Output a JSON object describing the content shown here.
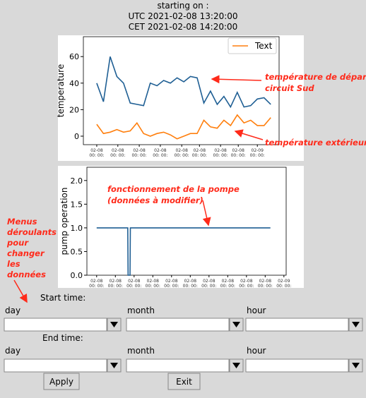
{
  "header": {
    "lines": [
      "starting on :",
      "UTC 2021-02-08 13:20:00",
      "CET 2021-02-08 14:20:00"
    ]
  },
  "chart_data": [
    {
      "type": "line",
      "ylabel": "temperature",
      "x": [
        0,
        2,
        4,
        6,
        8,
        10,
        12,
        14,
        16,
        18,
        20,
        22,
        24,
        26,
        28,
        30,
        32,
        34,
        36,
        38,
        40,
        42,
        44,
        46,
        48,
        50,
        52
      ],
      "series": [
        {
          "color": "#1f5f94",
          "values": [
            40,
            26,
            60,
            45,
            40,
            25,
            24,
            23,
            40,
            38,
            42,
            40,
            44,
            41,
            45,
            44,
            25,
            34,
            24,
            30,
            22,
            33,
            22,
            23,
            28,
            29,
            24
          ]
        },
        {
          "name": "Text",
          "color": "#ff7f0e",
          "values": [
            9,
            2,
            3,
            5,
            3,
            4,
            10,
            2,
            0,
            2,
            3,
            1,
            -2,
            0,
            2,
            2,
            12,
            7,
            6,
            12,
            8,
            16,
            10,
            12,
            8,
            8,
            14
          ]
        }
      ],
      "xlim": [
        -4,
        54.5
      ],
      "ylim": [
        -6.4,
        75
      ],
      "yticks": [
        0,
        20,
        40,
        60
      ],
      "xticks": [
        {
          "value": 0,
          "label": "02-08\n00: 00:"
        },
        {
          "value": 6.3,
          "label": "02-08\n00: 00:"
        },
        {
          "value": 12.7,
          "label": "02-08\n00: 00:"
        },
        {
          "value": 19,
          "label": "02-08\n00: 00:"
        },
        {
          "value": 25.4,
          "label": "02-08\n00: 00:"
        },
        {
          "value": 30.7,
          "label": "02-08\n00: 00:"
        },
        {
          "value": 37,
          "label": "02-08\n00: 00:"
        },
        {
          "value": 42.3,
          "label": "02-08\n00: 00:"
        },
        {
          "value": 48,
          "label": "02-09\n00: 00:"
        }
      ],
      "legend": "upper right"
    },
    {
      "type": "line",
      "ylabel": "pump operation",
      "x": [
        0,
        8.3,
        8.4,
        8.9,
        9.0,
        46.4
      ],
      "series": [
        {
          "color": "#1f5f94",
          "values": [
            1,
            1,
            0,
            0,
            1,
            1
          ]
        }
      ],
      "xlim": [
        -2.6,
        50.6
      ],
      "ylim": [
        0,
        2.28
      ],
      "yticks": [
        {
          "value": 0,
          "label": "0.0"
        },
        {
          "value": 0.5,
          "label": "0.5"
        },
        {
          "value": 1,
          "label": "1.0"
        },
        {
          "value": 1.5,
          "label": "1.5"
        },
        {
          "value": 2,
          "label": "2.0"
        }
      ],
      "xticks": [
        {
          "value": 0,
          "label": "02-08\n00: 00:"
        },
        {
          "value": 5,
          "label": "02-08\n00: 00:"
        },
        {
          "value": 10,
          "label": "02-08\n00: 00:"
        },
        {
          "value": 15,
          "label": "02-08\n00: 00:"
        },
        {
          "value": 20,
          "label": "02-08\n00: 00:"
        },
        {
          "value": 25,
          "label": "02-08\n00: 00:"
        },
        {
          "value": 30,
          "label": "02-08\n00: 00:"
        },
        {
          "value": 35,
          "label": "02-08\n00: 00:"
        },
        {
          "value": 40,
          "label": "02-08\n00: 00:"
        },
        {
          "value": 45,
          "label": "02-08\n00: 00:"
        },
        {
          "value": 50,
          "label": "02-09\n00: 00:"
        }
      ]
    }
  ],
  "annotations": {
    "supply_temperature": [
      "température de départ",
      "circuit Sud"
    ],
    "outdoor_temperature": [
      "température extérieure"
    ],
    "pump": [
      "fonctionnement de la pompe",
      "(données à modifier)"
    ],
    "menus": [
      "Menus",
      "déroulants",
      "pour",
      "changer",
      "les",
      "données"
    ]
  },
  "form": {
    "start_label": "Start time:",
    "end_label": "End time:",
    "fields": [
      "day",
      "month",
      "hour"
    ],
    "apply": "Apply",
    "exit": "Exit"
  }
}
